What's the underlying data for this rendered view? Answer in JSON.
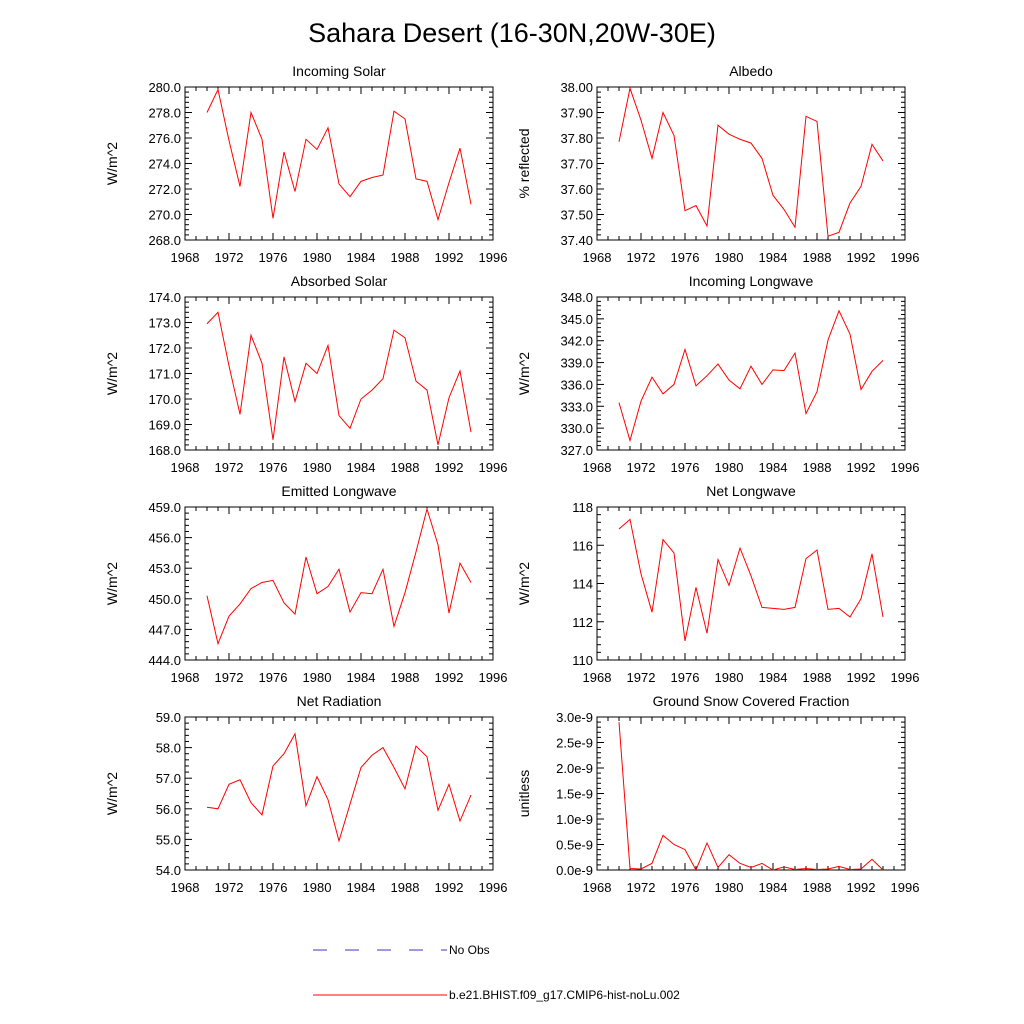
{
  "title": "Sahara Desert (16-30N,20W-30E)",
  "legend": {
    "obs_label": "No Obs",
    "obs_color": "#3a3ab8",
    "model_label": "b.e21.BHIST.f09_g17.CMIP6-hist-noLu.002",
    "model_color": "#ff0000"
  },
  "chart_data": [
    {
      "type": "line",
      "title": "Incoming Solar",
      "ylabel": "W/m^2",
      "xlim": [
        1968,
        1996
      ],
      "xticks": [
        1968,
        1972,
        1976,
        1980,
        1984,
        1988,
        1992,
        1996
      ],
      "ylim": [
        268.0,
        280.0
      ],
      "yticks": [
        "268.0",
        "270.0",
        "272.0",
        "274.0",
        "276.0",
        "278.0",
        "280.0"
      ],
      "x": [
        1970,
        1971,
        1972,
        1973,
        1974,
        1975,
        1976,
        1977,
        1978,
        1979,
        1980,
        1981,
        1982,
        1983,
        1984,
        1985,
        1986,
        1987,
        1988,
        1989,
        1990,
        1991,
        1992,
        1993,
        1994
      ],
      "series": [
        {
          "values": [
            278.0,
            279.8,
            275.8,
            272.2,
            278.0,
            275.9,
            269.7,
            274.9,
            271.8,
            275.9,
            275.1,
            276.8,
            272.4,
            271.4,
            272.6,
            272.9,
            273.1,
            278.1,
            277.5,
            272.8,
            272.6,
            269.6,
            272.5,
            275.2,
            270.8
          ],
          "color": "#ff0000"
        }
      ]
    },
    {
      "type": "line",
      "title": "Albedo",
      "ylabel": "% reflected",
      "xlim": [
        1968,
        1996
      ],
      "xticks": [
        1968,
        1972,
        1976,
        1980,
        1984,
        1988,
        1992,
        1996
      ],
      "ylim": [
        37.4,
        38.0
      ],
      "yticks": [
        "37.40",
        "37.50",
        "37.60",
        "37.70",
        "37.80",
        "37.90",
        "38.00"
      ],
      "x": [
        1970,
        1971,
        1972,
        1973,
        1974,
        1975,
        1976,
        1977,
        1978,
        1979,
        1980,
        1981,
        1982,
        1983,
        1984,
        1985,
        1986,
        1987,
        1988,
        1989,
        1990,
        1991,
        1992,
        1993,
        1994
      ],
      "series": [
        {
          "values": [
            37.785,
            37.995,
            37.87,
            37.72,
            37.9,
            37.81,
            37.515,
            37.535,
            37.455,
            37.85,
            37.815,
            37.795,
            37.78,
            37.72,
            37.575,
            37.52,
            37.45,
            37.885,
            37.865,
            37.415,
            37.43,
            37.545,
            37.61,
            37.775,
            37.71
          ],
          "color": "#ff0000"
        }
      ]
    },
    {
      "type": "line",
      "title": "Absorbed Solar",
      "ylabel": "W/m^2",
      "xlim": [
        1968,
        1996
      ],
      "xticks": [
        1968,
        1972,
        1976,
        1980,
        1984,
        1988,
        1992,
        1996
      ],
      "ylim": [
        168.0,
        174.0
      ],
      "yticks": [
        "168.0",
        "169.0",
        "170.0",
        "171.0",
        "172.0",
        "173.0",
        "174.0"
      ],
      "x": [
        1970,
        1971,
        1972,
        1973,
        1974,
        1975,
        1976,
        1977,
        1978,
        1979,
        1980,
        1981,
        1982,
        1983,
        1984,
        1985,
        1986,
        1987,
        1988,
        1989,
        1990,
        1991,
        1992,
        1993,
        1994
      ],
      "series": [
        {
          "values": [
            172.95,
            173.4,
            171.3,
            169.4,
            172.5,
            171.4,
            168.4,
            171.65,
            169.9,
            171.4,
            171.0,
            172.1,
            169.35,
            168.85,
            170.0,
            170.35,
            170.8,
            172.7,
            172.4,
            170.7,
            170.35,
            168.2,
            170.05,
            171.1,
            168.7
          ],
          "color": "#ff0000"
        }
      ]
    },
    {
      "type": "line",
      "title": "Incoming Longwave",
      "ylabel": "W/m^2",
      "xlim": [
        1968,
        1996
      ],
      "xticks": [
        1968,
        1972,
        1976,
        1980,
        1984,
        1988,
        1992,
        1996
      ],
      "ylim": [
        327.0,
        348.0
      ],
      "yticks": [
        "327.0",
        "330.0",
        "333.0",
        "336.0",
        "339.0",
        "342.0",
        "345.0",
        "348.0"
      ],
      "x": [
        1970,
        1971,
        1972,
        1973,
        1974,
        1975,
        1976,
        1977,
        1978,
        1979,
        1980,
        1981,
        1982,
        1983,
        1984,
        1985,
        1986,
        1987,
        1988,
        1989,
        1990,
        1991,
        1992,
        1993,
        1994
      ],
      "series": [
        {
          "values": [
            333.5,
            328.3,
            333.7,
            337.0,
            334.7,
            336.0,
            340.8,
            335.8,
            337.2,
            338.8,
            336.6,
            335.4,
            338.5,
            336.0,
            338.0,
            337.9,
            340.3,
            332.0,
            335.0,
            342.1,
            346.1,
            342.9,
            335.3,
            337.8,
            339.3
          ],
          "color": "#ff0000"
        }
      ]
    },
    {
      "type": "line",
      "title": "Emitted Longwave",
      "ylabel": "W/m^2",
      "xlim": [
        1968,
        1996
      ],
      "xticks": [
        1968,
        1972,
        1976,
        1980,
        1984,
        1988,
        1992,
        1996
      ],
      "ylim": [
        444.0,
        459.0
      ],
      "yticks": [
        "444.0",
        "447.0",
        "450.0",
        "453.0",
        "456.0",
        "459.0"
      ],
      "x": [
        1970,
        1971,
        1972,
        1973,
        1974,
        1975,
        1976,
        1977,
        1978,
        1979,
        1980,
        1981,
        1982,
        1983,
        1984,
        1985,
        1986,
        1987,
        1988,
        1989,
        1990,
        1991,
        1992,
        1993,
        1994
      ],
      "series": [
        {
          "values": [
            450.3,
            445.6,
            448.3,
            449.5,
            451.0,
            451.6,
            451.8,
            449.6,
            448.5,
            454.1,
            450.5,
            451.2,
            452.9,
            448.7,
            450.6,
            450.5,
            452.9,
            447.3,
            450.6,
            454.6,
            458.8,
            455.3,
            448.6,
            453.5,
            451.6
          ],
          "color": "#ff0000"
        }
      ]
    },
    {
      "type": "line",
      "title": "Net Longwave",
      "ylabel": "W/m^2",
      "xlim": [
        1968,
        1996
      ],
      "xticks": [
        1968,
        1972,
        1976,
        1980,
        1984,
        1988,
        1992,
        1996
      ],
      "ylim": [
        110,
        118
      ],
      "yticks": [
        "110",
        "112",
        "114",
        "116",
        "118"
      ],
      "x": [
        1970,
        1971,
        1972,
        1973,
        1974,
        1975,
        1976,
        1977,
        1978,
        1979,
        1980,
        1981,
        1982,
        1983,
        1984,
        1985,
        1986,
        1987,
        1988,
        1989,
        1990,
        1991,
        1992,
        1993,
        1994
      ],
      "series": [
        {
          "values": [
            116.85,
            117.35,
            114.5,
            112.5,
            116.3,
            115.6,
            111.0,
            113.8,
            111.4,
            115.25,
            113.9,
            115.85,
            114.4,
            112.75,
            112.7,
            112.65,
            112.75,
            115.3,
            115.75,
            112.65,
            112.7,
            112.25,
            113.2,
            115.55,
            112.25
          ],
          "color": "#ff0000"
        }
      ]
    },
    {
      "type": "line",
      "title": "Net Radiation",
      "ylabel": "W/m^2",
      "xlim": [
        1968,
        1996
      ],
      "xticks": [
        1968,
        1972,
        1976,
        1980,
        1984,
        1988,
        1992,
        1996
      ],
      "ylim": [
        54.0,
        59.0
      ],
      "yticks": [
        "54.0",
        "55.0",
        "56.0",
        "57.0",
        "58.0",
        "59.0"
      ],
      "x": [
        1970,
        1971,
        1972,
        1973,
        1974,
        1975,
        1976,
        1977,
        1978,
        1979,
        1980,
        1981,
        1982,
        1983,
        1984,
        1985,
        1986,
        1987,
        1988,
        1989,
        1990,
        1991,
        1992,
        1993,
        1994
      ],
      "series": [
        {
          "values": [
            56.05,
            56.0,
            56.8,
            56.95,
            56.2,
            55.8,
            57.4,
            57.8,
            58.45,
            56.1,
            57.05,
            56.3,
            54.95,
            56.15,
            57.35,
            57.75,
            58.0,
            57.35,
            56.65,
            58.05,
            57.7,
            55.95,
            56.8,
            55.6,
            56.45
          ],
          "color": "#ff0000"
        }
      ]
    },
    {
      "type": "line",
      "title": "Ground Snow Covered Fraction",
      "ylabel": "unitless",
      "xlim": [
        1968,
        1996
      ],
      "xticks": [
        1968,
        1972,
        1976,
        1980,
        1984,
        1988,
        1992,
        1996
      ],
      "ylim": [
        0.0,
        3e-09
      ],
      "yticks": [
        "0.0e-9",
        "0.5e-9",
        "1.0e-9",
        "1.5e-9",
        "2.0e-9",
        "2.5e-9",
        "3.0e-9"
      ],
      "x": [
        1970,
        1971,
        1972,
        1973,
        1974,
        1975,
        1976,
        1977,
        1978,
        1979,
        1980,
        1981,
        1982,
        1983,
        1984,
        1985,
        1986,
        1987,
        1988,
        1989,
        1990,
        1991,
        1992,
        1993,
        1994
      ],
      "series": [
        {
          "values": [
            2.9e-09,
            3e-11,
            2e-11,
            1.3e-10,
            6.8e-10,
            5e-10,
            4e-10,
            0.0,
            5.3e-10,
            5e-11,
            3e-10,
            1.3e-10,
            5e-11,
            1.3e-10,
            0.0,
            6e-11,
            1e-11,
            3e-11,
            1e-11,
            2e-11,
            7e-11,
            1e-11,
            2e-11,
            2.1e-10,
            0.0
          ],
          "color": "#ff0000"
        }
      ]
    }
  ]
}
